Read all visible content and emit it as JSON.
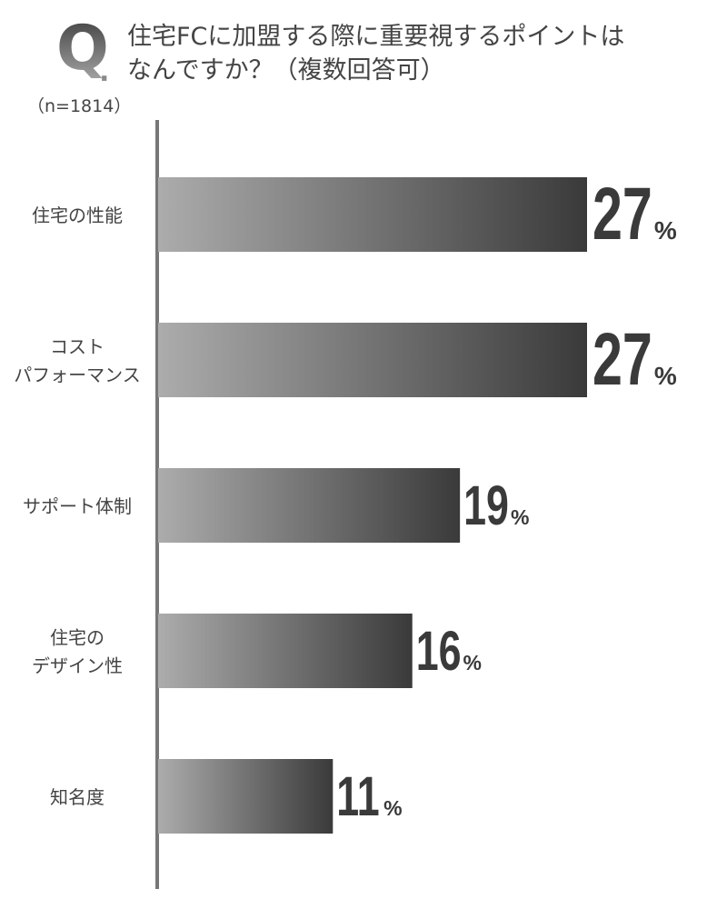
{
  "header": {
    "q_letter": "Q",
    "q_dot": ".",
    "title_line1": "住宅FCに加盟する際に重要視するポイントは",
    "title_line2": "なんですか？（複数回答可）"
  },
  "sample_size": "（n=1814）",
  "colors": {
    "bar_light": "#acacac",
    "bar_dark": "#3a3a3a",
    "axis": "#777777",
    "text": "#444444"
  },
  "chart_data": {
    "type": "bar",
    "orientation": "horizontal",
    "title": "住宅FCに加盟する際に重要視するポイントはなんですか？（複数回答可）",
    "categories": [
      [
        "住宅の性能"
      ],
      [
        "コスト",
        "パフォーマンス"
      ],
      [
        "サポート体制"
      ],
      [
        "住宅の",
        "デザイン性"
      ],
      [
        "知名度"
      ]
    ],
    "values": [
      27,
      27,
      19,
      16,
      11
    ],
    "value_labels": [
      "27",
      "27",
      "19",
      "16",
      "11"
    ],
    "unit": "%",
    "xlim": [
      0,
      27
    ],
    "grid": false,
    "legend": "none"
  }
}
